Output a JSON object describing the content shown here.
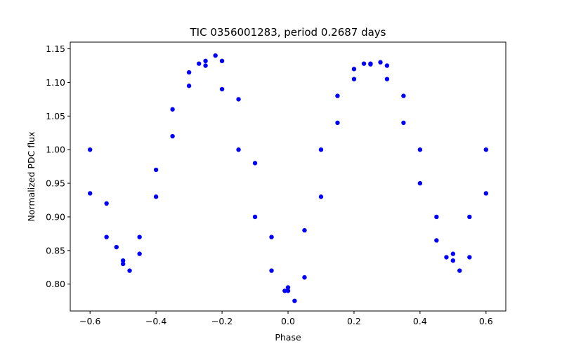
{
  "chart_data": {
    "type": "scatter",
    "title": "TIC 0356001283, period 0.2687 days",
    "xlabel": "Phase",
    "ylabel": "Normalized PDC flux",
    "xlim": [
      -0.66,
      0.66
    ],
    "ylim": [
      0.76,
      1.16
    ],
    "xticks": [
      -0.6,
      -0.4,
      -0.2,
      0.0,
      0.2,
      0.4,
      0.6
    ],
    "xtick_labels": [
      "−0.6",
      "−0.4",
      "−0.2",
      "0.0",
      "0.2",
      "0.4",
      "0.6"
    ],
    "yticks": [
      0.8,
      0.85,
      0.9,
      0.95,
      1.0,
      1.05,
      1.1,
      1.15
    ],
    "ytick_labels": [
      "0.80",
      "0.85",
      "0.90",
      "0.95",
      "1.00",
      "1.05",
      "1.10",
      "1.15"
    ],
    "grid": false,
    "marker_color": "#0000ff",
    "series": [
      {
        "x": [
          -0.6,
          -0.55,
          -0.5,
          -0.48,
          -0.45,
          -0.4,
          -0.35,
          -0.3,
          -0.25,
          -0.22,
          -0.2,
          -0.15,
          -0.1,
          -0.05,
          0.0,
          0.02,
          0.05,
          0.1,
          0.15,
          0.2,
          0.25,
          0.28,
          0.3,
          0.35,
          0.4,
          0.45,
          0.5,
          0.52,
          0.55,
          0.6
        ],
        "y": [
          0.935,
          0.87,
          0.83,
          0.82,
          0.845,
          0.93,
          1.02,
          1.095,
          1.132,
          1.14,
          1.132,
          1.075,
          0.98,
          0.87,
          0.79,
          0.775,
          0.81,
          0.93,
          1.04,
          1.105,
          1.128,
          1.13,
          1.125,
          1.08,
          1.0,
          0.9,
          0.835,
          0.82,
          0.84,
          0.935
        ]
      },
      {
        "x": [
          -0.6,
          -0.55,
          -0.52,
          -0.5,
          -0.45,
          -0.4,
          -0.35,
          -0.3,
          -0.27,
          -0.25,
          -0.2,
          -0.15,
          -0.1,
          -0.05,
          -0.01,
          0.0,
          0.05,
          0.1,
          0.15,
          0.2,
          0.23,
          0.25,
          0.3,
          0.35,
          0.4,
          0.45,
          0.48,
          0.5,
          0.55,
          0.6
        ],
        "y": [
          1.0,
          0.92,
          0.855,
          0.835,
          0.87,
          0.97,
          1.06,
          1.115,
          1.128,
          1.125,
          1.09,
          1.0,
          0.9,
          0.82,
          0.79,
          0.795,
          0.88,
          1.0,
          1.08,
          1.12,
          1.128,
          1.127,
          1.105,
          1.04,
          0.95,
          0.865,
          0.84,
          0.845,
          0.9,
          1.0
        ]
      }
    ]
  }
}
